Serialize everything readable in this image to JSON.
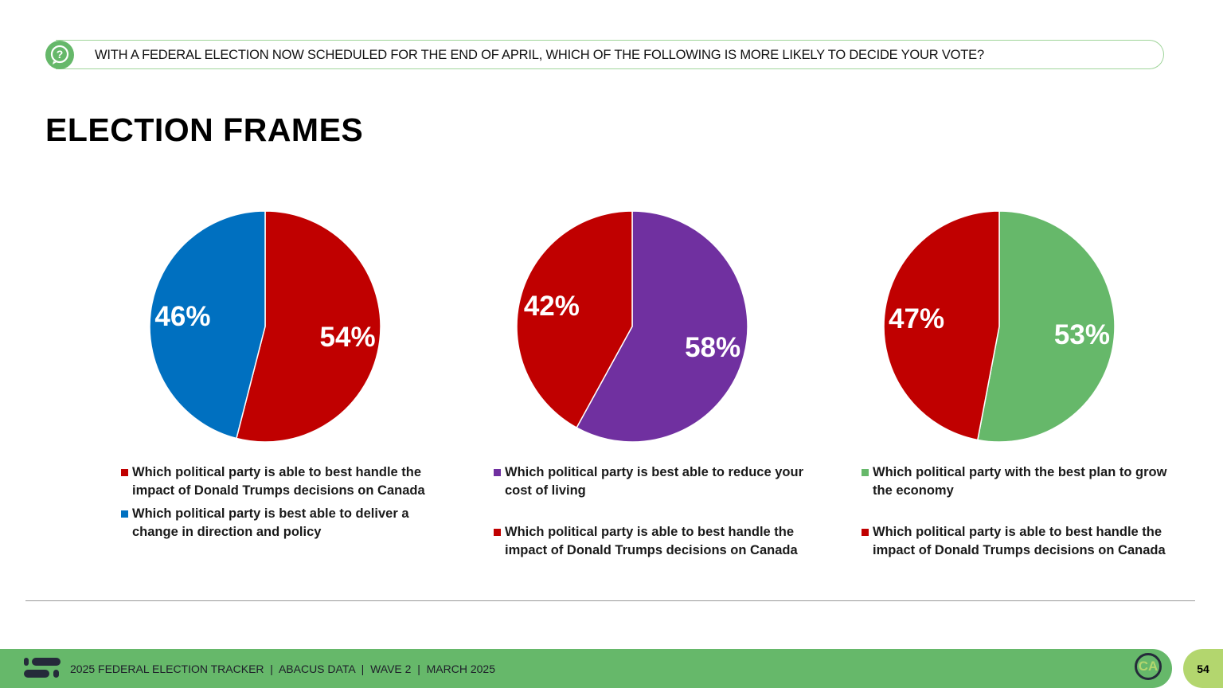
{
  "header": {
    "question": "WITH A FEDERAL ELECTION NOW SCHEDULED FOR THE END OF APRIL, WHICH OF THE FOLLOWING IS MORE LIKELY TO DECIDE YOUR VOTE?",
    "icon": "question-bubble-icon"
  },
  "title": "ELECTION FRAMES",
  "chart_data": [
    {
      "type": "pie",
      "slices": [
        {
          "label": "Which political party is able to best handle the impact of Donald Trumps decisions on Canada",
          "value": 54,
          "display": "54%",
          "color": "#c00000"
        },
        {
          "label": "Which political party is best able to deliver a change in direction and policy",
          "value": 46,
          "display": "46%",
          "color": "#0070c0"
        }
      ],
      "legend": "bottom"
    },
    {
      "type": "pie",
      "slices": [
        {
          "label": "Which political party is best able to reduce your cost of living",
          "value": 58,
          "display": "58%",
          "color": "#7030a0"
        },
        {
          "label": "Which political party is able to best handle the impact of Donald Trumps decisions on Canada",
          "value": 42,
          "display": "42%",
          "color": "#c00000"
        }
      ],
      "legend": "bottom"
    },
    {
      "type": "pie",
      "slices": [
        {
          "label": "Which political party with the best plan to grow the economy",
          "value": 53,
          "display": "53%",
          "color": "#66b86a"
        },
        {
          "label": "Which political party is able to best handle the impact of Donald Trumps decisions on Canada",
          "value": 47,
          "display": "47%",
          "color": "#c00000"
        }
      ],
      "legend": "bottom"
    }
  ],
  "footer": {
    "text": "2025 FEDERAL ELECTION TRACKER  |  ABACUS DATA  |  WAVE 2  |  MARCH 2025",
    "badge": "CA",
    "page": "54"
  }
}
